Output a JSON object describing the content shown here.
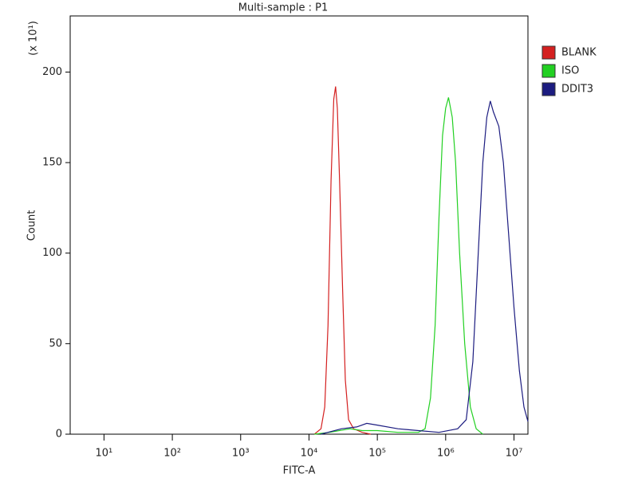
{
  "chart_data": {
    "type": "line",
    "title": "Multi-sample : P1",
    "x_label": "FITC-A",
    "y_label": "Count",
    "annotation": "(x 10¹)",
    "xscale": "log",
    "xlim": [
      3.2,
      16000000
    ],
    "xticks": [
      {
        "value": 10,
        "label": "10¹"
      },
      {
        "value": 100,
        "label": "10²"
      },
      {
        "value": 1000,
        "label": "10³"
      },
      {
        "value": 10000,
        "label": "10⁴"
      },
      {
        "value": 100000,
        "label": "10⁵"
      },
      {
        "value": 1000000,
        "label": "10⁶"
      },
      {
        "value": 10000000,
        "label": "10⁷"
      }
    ],
    "ylim": [
      0,
      231
    ],
    "yticks": [
      0,
      50,
      100,
      150,
      200
    ],
    "grid": false,
    "legend": "right",
    "series": [
      {
        "name": "BLANK",
        "color": "#d42020",
        "x": [
          12000,
          15000,
          17000,
          19000,
          21000,
          23000,
          24500,
          26000,
          28000,
          31000,
          34000,
          38000,
          45000,
          60000,
          80000
        ],
        "values": [
          0,
          3,
          15,
          60,
          140,
          185,
          192,
          180,
          140,
          80,
          30,
          8,
          3,
          1,
          0
        ]
      },
      {
        "name": "ISO",
        "color": "#22d022",
        "x": [
          12000,
          20000,
          40000,
          60000,
          100000,
          200000,
          400000,
          500000,
          600000,
          700000,
          800000,
          900000,
          1000000,
          1100000,
          1250000,
          1400000,
          1600000,
          1900000,
          2300000,
          2800000,
          3500000
        ],
        "values": [
          0,
          1,
          3,
          2,
          2,
          1,
          1,
          3,
          20,
          60,
          120,
          165,
          180,
          186,
          175,
          150,
          100,
          50,
          15,
          3,
          0
        ]
      },
      {
        "name": "DDIT3",
        "color": "#1c1c80",
        "x": [
          15000,
          30000,
          50000,
          70000,
          100000,
          200000,
          400000,
          800000,
          1500000,
          2000000,
          2500000,
          3000000,
          3500000,
          4000000,
          4500000,
          5000000,
          6000000,
          7000000,
          8000000,
          10000000,
          12000000,
          14000000,
          16000000
        ],
        "values": [
          0,
          3,
          4,
          6,
          5,
          3,
          2,
          1,
          3,
          8,
          40,
          100,
          150,
          175,
          184,
          178,
          170,
          150,
          120,
          70,
          35,
          15,
          7
        ]
      }
    ]
  }
}
